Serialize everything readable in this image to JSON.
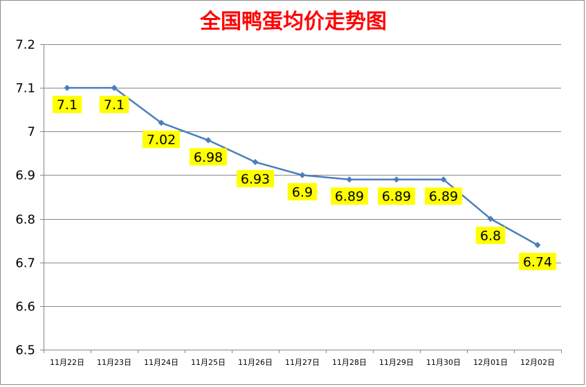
{
  "chart_data": {
    "type": "line",
    "title": "全国鸭蛋均价走势图",
    "categories": [
      "11月22日",
      "11月23日",
      "11月24日",
      "11月25日",
      "11月26日",
      "11月27日",
      "11月28日",
      "11月29日",
      "11月30日",
      "12月01日",
      "12月02日"
    ],
    "series": [
      {
        "values": [
          7.1,
          7.1,
          7.02,
          6.98,
          6.93,
          6.9,
          6.89,
          6.89,
          6.89,
          6.8,
          6.74
        ],
        "labels": [
          "7.1",
          "7.1",
          "7.02",
          "6.98",
          "6.93",
          "6.9",
          "6.89",
          "6.89",
          "6.89",
          "6.8",
          "6.74"
        ]
      }
    ],
    "yticks": [
      "6.5",
      "6.6",
      "6.7",
      "6.8",
      "6.9",
      "7",
      "7.1",
      "7.2"
    ],
    "ylim": [
      6.5,
      7.2
    ],
    "xlabel": "",
    "ylabel": "",
    "grid": true,
    "legend": "none",
    "colors": {
      "title": "#ff0000",
      "line": "#4a7ebb",
      "label_bg": "#ffff00",
      "grid": "#868686"
    }
  }
}
